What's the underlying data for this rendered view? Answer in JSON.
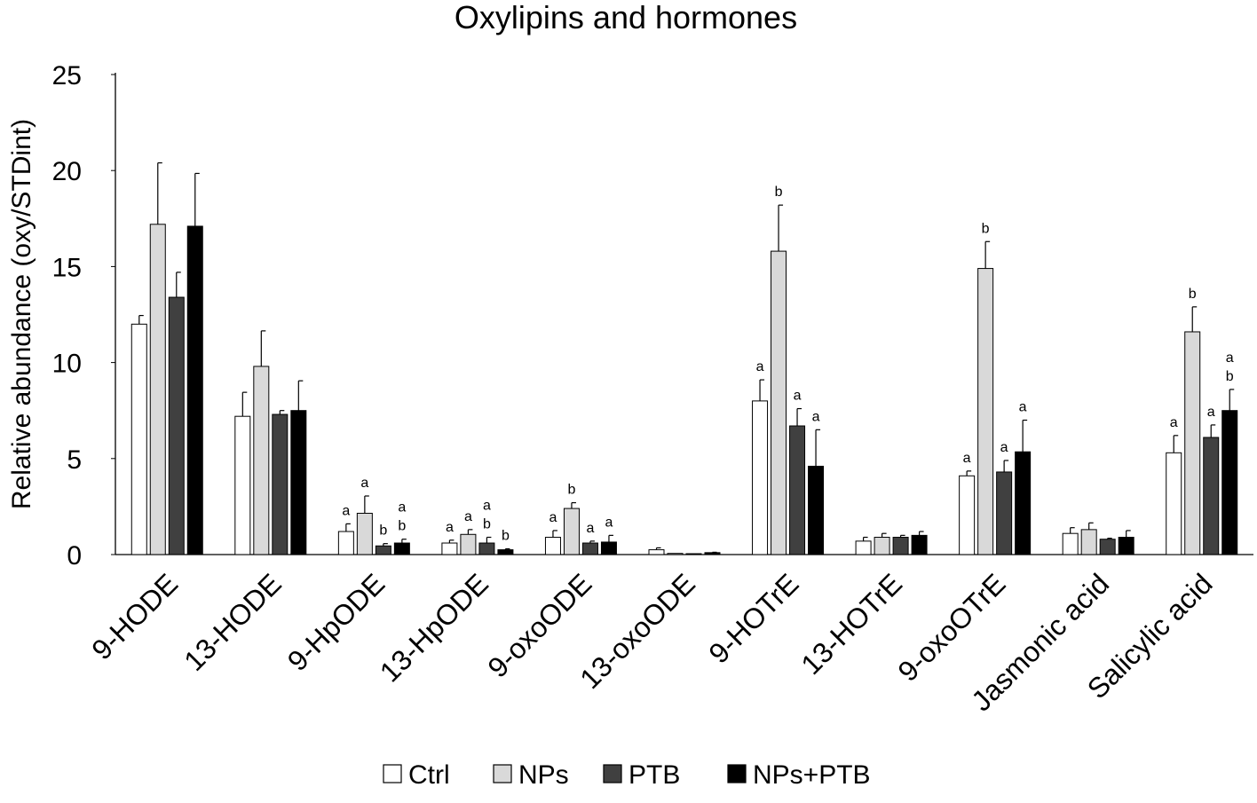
{
  "chart_data": {
    "type": "bar",
    "title": "Oxylipins and hormones",
    "xlabel": "",
    "ylabel": "Relative abundance (oxy/STDint)",
    "ylim": [
      0,
      25
    ],
    "yticks": [
      0,
      5,
      10,
      15,
      20,
      25
    ],
    "grid": false,
    "legend_position": "bottom",
    "categories": [
      "9-HODE",
      "13-HODE",
      "9-HpODE",
      "13-HpODE",
      "9-oxoODE",
      "13-oxoODE",
      "9-HOTrE",
      "13-HOTrE",
      "9-oxoOTrE",
      "Jasmonic acid",
      "Salicylic acid"
    ],
    "series": [
      {
        "name": "Ctrl",
        "color": "#ffffff",
        "values": [
          12.0,
          7.2,
          1.2,
          0.6,
          0.9,
          0.25,
          8.0,
          0.7,
          4.1,
          1.1,
          5.3
        ],
        "errors": [
          0.45,
          1.25,
          0.4,
          0.15,
          0.35,
          0.1,
          1.1,
          0.2,
          0.25,
          0.3,
          0.9
        ],
        "annotations": [
          "",
          "",
          "a",
          "a",
          "a",
          "",
          "a",
          "",
          "a",
          "",
          "a"
        ]
      },
      {
        "name": "NPs",
        "color": "#d9d9d9",
        "values": [
          17.2,
          9.8,
          2.15,
          1.05,
          2.4,
          0.06,
          15.8,
          0.9,
          14.9,
          1.3,
          11.6
        ],
        "errors": [
          3.2,
          1.85,
          0.9,
          0.25,
          0.3,
          0.0,
          2.4,
          0.2,
          1.4,
          0.35,
          1.3
        ],
        "annotations": [
          "",
          "",
          "a",
          "a",
          "b",
          "",
          "b",
          "",
          "b",
          "",
          "b"
        ]
      },
      {
        "name": "PTB",
        "color": "#404040",
        "values": [
          13.4,
          7.3,
          0.45,
          0.6,
          0.6,
          0.04,
          6.7,
          0.9,
          4.3,
          0.8,
          6.1
        ],
        "errors": [
          1.3,
          0.2,
          0.12,
          0.3,
          0.1,
          0.0,
          0.9,
          0.1,
          0.6,
          0.05,
          0.65
        ],
        "annotations": [
          "",
          "",
          "b",
          "ab",
          "a",
          "",
          "a",
          "",
          "a",
          "",
          "a"
        ]
      },
      {
        "name": "NPs+PTB",
        "color": "#000000",
        "values": [
          17.1,
          7.5,
          0.6,
          0.25,
          0.65,
          0.1,
          4.6,
          1.0,
          5.35,
          0.9,
          7.5
        ],
        "errors": [
          2.75,
          1.55,
          0.2,
          0.05,
          0.35,
          0.02,
          1.9,
          0.2,
          1.65,
          0.35,
          1.1
        ],
        "annotations": [
          "",
          "",
          "ab",
          "b",
          "a",
          "",
          "a",
          "",
          "a",
          "",
          "ab"
        ]
      }
    ]
  }
}
